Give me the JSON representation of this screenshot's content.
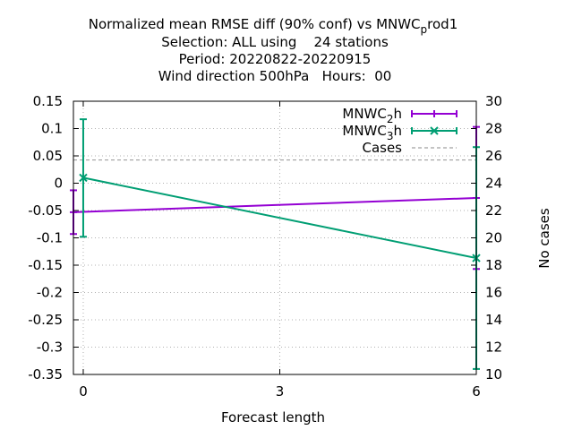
{
  "chart_data": {
    "type": "line",
    "title_lines": [
      "Normalized mean RMSE diff (90% conf) vs MNWC_prod1",
      "Selection: ALL using    24 stations",
      "Period: 20220822-20220915",
      "Wind direction 500hPa   Hours:  00"
    ],
    "title_parts": {
      "line1_pre": "Normalized mean RMSE diff (90% conf) vs MNWC",
      "line1_sub": "p",
      "line1_post": "rod1"
    },
    "xlabel": "Forecast length",
    "ylabel": "",
    "y2label": "No cases",
    "xlim": [
      -0.15,
      6
    ],
    "ylim": [
      -0.35,
      0.15
    ],
    "y2lim": [
      10,
      30
    ],
    "x_ticks": [
      "0",
      "3",
      "6"
    ],
    "y_ticks": [
      "0.15",
      "0.1",
      "0.05",
      "0",
      "-0.05",
      "-0.1",
      "-0.15",
      "-0.2",
      "-0.25",
      "-0.3",
      "-0.35"
    ],
    "y2_ticks": [
      "30",
      "28",
      "26",
      "24",
      "22",
      "20",
      "18",
      "16",
      "14",
      "12",
      "10"
    ],
    "grid": true,
    "legend_position": "top-right",
    "series": [
      {
        "name": "MNWC_2h",
        "label_base": "MNWC",
        "label_sub": "2",
        "label_post": "h",
        "color": "#9400d3",
        "marker": "plus",
        "x": [
          -0.15,
          6
        ],
        "y": [
          -0.053,
          -0.027
        ],
        "err_low": [
          -0.093,
          -0.157
        ],
        "err_high": [
          -0.013,
          0.103
        ]
      },
      {
        "name": "MNWC_3h",
        "label_base": "MNWC",
        "label_sub": "3",
        "label_post": "h",
        "color": "#009e73",
        "marker": "x",
        "x": [
          0,
          6
        ],
        "y": [
          0.01,
          -0.137
        ],
        "err_low": [
          -0.098,
          -0.34
        ],
        "err_high": [
          0.117,
          0.066
        ]
      }
    ],
    "cases": {
      "name": "Cases",
      "color": "#a0a0a0",
      "value": 25.7
    }
  }
}
